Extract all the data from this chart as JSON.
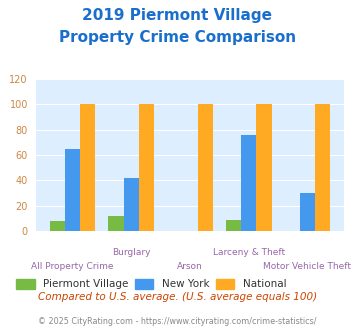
{
  "title_line1": "2019 Piermont Village",
  "title_line2": "Property Crime Comparison",
  "title_color": "#1a6fcc",
  "categories": [
    "All Property Crime",
    "Burglary",
    "Arson",
    "Larceny & Theft",
    "Motor Vehicle Theft"
  ],
  "group_labels_top": [
    "",
    "Burglary",
    "",
    "Larceny & Theft",
    ""
  ],
  "group_labels_bot": [
    "All Property Crime",
    "",
    "Arson",
    "",
    "Motor Vehicle Theft"
  ],
  "piermont_values": [
    8,
    12,
    0,
    9,
    0
  ],
  "newyork_values": [
    65,
    42,
    0,
    76,
    30
  ],
  "national_values": [
    100,
    100,
    100,
    100,
    100
  ],
  "piermont_color": "#77bb44",
  "newyork_color": "#4499ee",
  "national_color": "#ffaa22",
  "ylim": [
    0,
    120
  ],
  "yticks": [
    0,
    20,
    40,
    60,
    80,
    100,
    120
  ],
  "bar_width": 0.26,
  "bg_color": "#ddeeff",
  "legend_labels": [
    "Piermont Village",
    "New York",
    "National"
  ],
  "footnote1": "Compared to U.S. average. (U.S. average equals 100)",
  "footnote2": "© 2025 CityRating.com - https://www.cityrating.com/crime-statistics/",
  "footnote1_color": "#cc4400",
  "footnote2_color": "#888888",
  "xlabel_color": "#9966aa",
  "yticklabel_color": "#cc8844"
}
